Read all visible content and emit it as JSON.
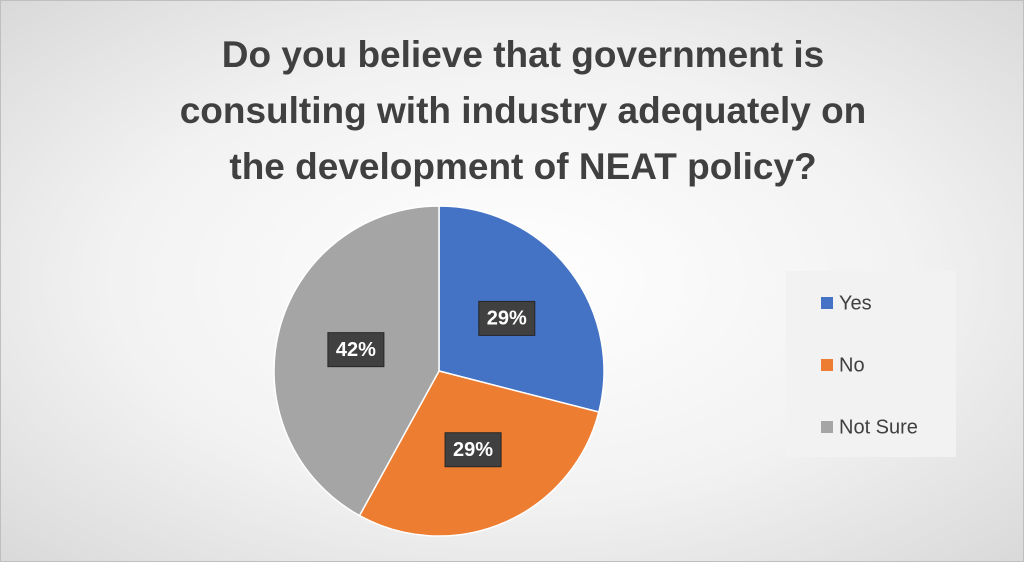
{
  "chart_data": {
    "type": "pie",
    "title": "Do you believe that government is consulting with industry adequately on the development of NEAT policy?",
    "categories": [
      "Yes",
      "No",
      "Not Sure"
    ],
    "values": [
      29,
      29,
      42
    ],
    "value_labels": [
      "29%",
      "29%",
      "42%"
    ],
    "colors": [
      "#4472c4",
      "#ed7d31",
      "#a5a5a5"
    ],
    "legend": "right"
  }
}
